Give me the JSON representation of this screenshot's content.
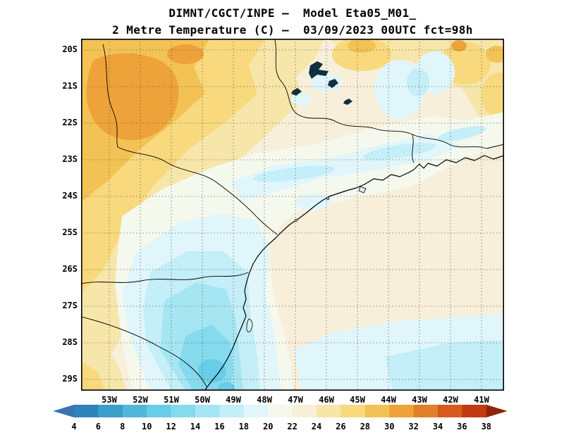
{
  "header": {
    "line1": "DIMNT/CGCT/INPE –  Model Eta05_M01_",
    "line2": "2 Metre Temperature (C) –  03/09/2023 00UTC fct=98h"
  },
  "axes": {
    "lat": [
      "20S",
      "21S",
      "22S",
      "23S",
      "24S",
      "25S",
      "26S",
      "27S",
      "28S",
      "29S"
    ],
    "lon": [
      "53W",
      "52W",
      "51W",
      "50W",
      "49W",
      "48W",
      "47W",
      "46W",
      "45W",
      "44W",
      "43W",
      "42W",
      "41W"
    ]
  },
  "colorbar": {
    "labels": [
      "4",
      "6",
      "8",
      "10",
      "12",
      "14",
      "16",
      "18",
      "20",
      "22",
      "24",
      "26",
      "28",
      "30",
      "32",
      "34",
      "36",
      "38"
    ],
    "colors": [
      "#3a76ad",
      "#2f83bd",
      "#3b9fcb",
      "#4fb8da",
      "#68cde7",
      "#86daee",
      "#a6e6f3",
      "#c4eef8",
      "#e0f6fb",
      "#f4f8ed",
      "#f7efd9",
      "#f7e6aa",
      "#f8d97d",
      "#f3c255",
      "#eda33a",
      "#e27f2a",
      "#d65a1e",
      "#c43a14",
      "#8f2409"
    ],
    "unit": "C"
  },
  "palette": {
    "10-12": "#68cde7",
    "12-14": "#86daee",
    "14-16": "#a6e6f3",
    "16-18": "#c4eef8",
    "18-20": "#e0f6fb",
    "20-22": "#f4f8ed",
    "22-24": "#f7efd9",
    "24-26": "#f7e6aa",
    "26-28": "#f8d97d",
    "28-30": "#f3c255",
    "30-32": "#eda33a",
    "water": "#10303f"
  },
  "chart_data": {
    "type": "heatmap",
    "title": "DIMNT/CGCT/INPE – Model Eta05_M01_",
    "subtitle": "2 Metre Temperature (C) – 03/09/2023 00UTC fct=98h",
    "institution": "DIMNT/CGCT/INPE",
    "model": "Eta05_M01_",
    "variable": "2 Metre Temperature (C)",
    "valid_time": "03/09/2023 00UTC",
    "forecast": "fct=98h",
    "x_ticks": [
      "53W",
      "52W",
      "51W",
      "50W",
      "49W",
      "48W",
      "47W",
      "46W",
      "45W",
      "44W",
      "43W",
      "42W",
      "41W"
    ],
    "y_ticks": [
      "20S",
      "21S",
      "22S",
      "23S",
      "24S",
      "25S",
      "26S",
      "27S",
      "28S",
      "29S"
    ],
    "colorbar_levels_c": [
      4,
      6,
      8,
      10,
      12,
      14,
      16,
      18,
      20,
      22,
      24,
      26,
      28,
      30,
      32,
      34,
      36,
      38
    ],
    "legend_position": "bottom",
    "grid": "dotted graticule, 1 degree spacing",
    "temperature_grid_c": {
      "lons_w": [
        53,
        52,
        51,
        50,
        49,
        48,
        47,
        46,
        45,
        44,
        43,
        42,
        41
      ],
      "lats_s": [
        20,
        21,
        22,
        23,
        24,
        25,
        26,
        27,
        28,
        29
      ],
      "values": [
        [
          29,
          30,
          30,
          29,
          27,
          26,
          25,
          22,
          24,
          24,
          22,
          20,
          23
        ],
        [
          30,
          31,
          30,
          28,
          27,
          26,
          24,
          22,
          23,
          23,
          21,
          19,
          23
        ],
        [
          29,
          30,
          29,
          27,
          25,
          23,
          22,
          21,
          20,
          21,
          22,
          21,
          22
        ],
        [
          27,
          28,
          27,
          25,
          23,
          20,
          19,
          19,
          20,
          22,
          23,
          23,
          23
        ],
        [
          26,
          26,
          25,
          23,
          20,
          18,
          19,
          21,
          22,
          23,
          23,
          23,
          23
        ],
        [
          25,
          24,
          22,
          19,
          17,
          17,
          19,
          22,
          23,
          23,
          23,
          23,
          23
        ],
        [
          24,
          22,
          19,
          17,
          16,
          16,
          18,
          22,
          23,
          23,
          23,
          23,
          23
        ],
        [
          23,
          21,
          17,
          15,
          15,
          16,
          19,
          22,
          23,
          23,
          23,
          22,
          22
        ],
        [
          22,
          20,
          16,
          13,
          13,
          15,
          20,
          22,
          23,
          22,
          22,
          21,
          20
        ],
        [
          21,
          19,
          14,
          12,
          13,
          16,
          20,
          21,
          22,
          21,
          20,
          19,
          18
        ]
      ]
    },
    "features": [
      "warm core 28-32 C in northwest corner of domain",
      "yellow 24-28 C band along northern edge with small warm spots near 42W 20S",
      "cool 16-20 C diagonal band along 22-23S between 48W and 43W",
      "cold pool 10-16 C over highlands in south of domain near 49-50W 27-29S",
      "mild cream 22-24 C over most of the Atlantic ocean area",
      "cool 16-20 C ocean region in far southeast corner",
      "coastline and state borders drawn in black; small dark reservoirs near 47W 21S"
    ]
  }
}
